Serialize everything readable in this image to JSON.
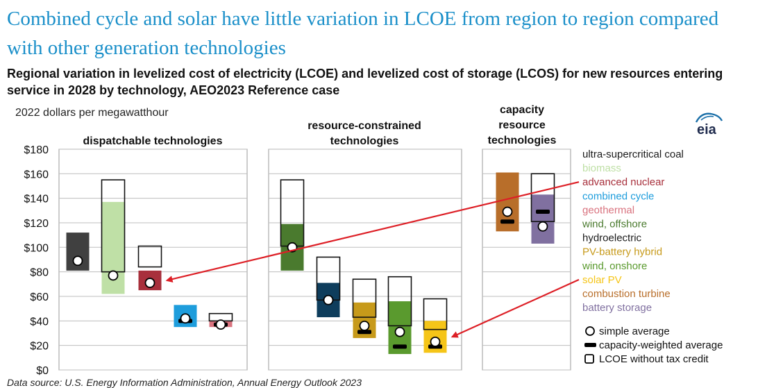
{
  "header": {
    "title": "Combined cycle and solar have little variation in LCOE from region to region compared with other generation technologies",
    "subtitle": "Regional variation in levelized cost of electricity (LCOE) and levelized cost of storage (LCOS) for new resources entering service in 2028 by technology, AEO2023 Reference case",
    "units": "2022 dollars per megawatthour",
    "logo_text": "eia"
  },
  "footer": {
    "source": "Data source: U.S. Energy Information Administration, Annual Energy Outlook 2023"
  },
  "chart_data": {
    "type": "range-bar",
    "ylim": [
      0,
      180
    ],
    "yticks": [
      0,
      20,
      40,
      60,
      80,
      100,
      120,
      140,
      160,
      180
    ],
    "ytick_labels": [
      "$0",
      "$20",
      "$40",
      "$60",
      "$80",
      "$100",
      "$120",
      "$140",
      "$160",
      "$180"
    ],
    "grid": true,
    "legend_position": "right",
    "groups": [
      {
        "label": [
          "dispatchable technologies"
        ]
      },
      {
        "label": [
          "resource-constrained",
          "technologies"
        ]
      },
      {
        "label": [
          "capacity",
          "resource",
          "technologies"
        ]
      }
    ],
    "series": [
      {
        "name": "ultra-supercritical coal",
        "color": "#404040",
        "group": 0,
        "min": 81,
        "max": 112,
        "credit_min": null,
        "credit_max": null,
        "simple_avg": 89,
        "weighted_avg": null
      },
      {
        "name": "biomass",
        "color": "#bfe0a6",
        "group": 0,
        "min": 62,
        "max": 137,
        "credit_min": 80,
        "credit_max": 155,
        "simple_avg": 77,
        "weighted_avg": null
      },
      {
        "name": "advanced nuclear",
        "color": "#a8303c",
        "group": 0,
        "min": 65,
        "max": 81,
        "credit_min": 84,
        "credit_max": 101,
        "simple_avg": 71,
        "weighted_avg": null
      },
      {
        "name": "combined cycle",
        "color": "#1e9ddc",
        "group": 0,
        "min": 35,
        "max": 53,
        "credit_min": null,
        "credit_max": null,
        "simple_avg": 42,
        "weighted_avg": 40
      },
      {
        "name": "geothermal",
        "color": "#d9737f",
        "group": 0,
        "min": 35,
        "max": 40,
        "credit_min": 40,
        "credit_max": 46,
        "simple_avg": 37,
        "weighted_avg": 37
      },
      {
        "name": "wind, offshore",
        "color": "#4a7a2e",
        "group": 1,
        "min": 81,
        "max": 119,
        "credit_min": 101,
        "credit_max": 155,
        "simple_avg": 100,
        "weighted_avg": null
      },
      {
        "name": "hydroelectric",
        "color": "#0e3d5c",
        "group": 1,
        "min": 43,
        "max": 71,
        "credit_min": 57,
        "credit_max": 92,
        "simple_avg": 57,
        "weighted_avg": null
      },
      {
        "name": "PV-battery hybrid",
        "color": "#c79a1a",
        "group": 1,
        "min": 26,
        "max": 55,
        "credit_min": 43,
        "credit_max": 74,
        "simple_avg": 36,
        "weighted_avg": 31
      },
      {
        "name": "wind, onshore",
        "color": "#5a9a2e",
        "group": 1,
        "min": 13,
        "max": 56,
        "credit_min": 36,
        "credit_max": 76,
        "simple_avg": 31,
        "weighted_avg": 19
      },
      {
        "name": "solar PV",
        "color": "#f5c518",
        "group": 1,
        "min": 14,
        "max": 40,
        "credit_min": 33,
        "credit_max": 58,
        "simple_avg": 23,
        "weighted_avg": 19
      },
      {
        "name": "combustion turbine",
        "color": "#b86e2a",
        "group": 2,
        "min": 113,
        "max": 161,
        "credit_min": null,
        "credit_max": null,
        "simple_avg": 129,
        "weighted_avg": 121
      },
      {
        "name": "battery storage",
        "color": "#8070a0",
        "group": 2,
        "min": 103,
        "max": 143,
        "credit_min": 121,
        "credit_max": 160,
        "simple_avg": 117,
        "weighted_avg": 129
      }
    ],
    "legend_markers": [
      {
        "symbol": "simple-average",
        "label": "simple average"
      },
      {
        "symbol": "capacity-weighted-average",
        "label": "capacity-weighted average"
      },
      {
        "symbol": "lcoe-without-tax-credit",
        "label": "LCOE without tax credit"
      }
    ],
    "annotations": [
      {
        "from_legend": "advanced nuclear",
        "to_series": "advanced nuclear",
        "color": "#dd1f26"
      },
      {
        "from_legend": "solar PV",
        "to_series": "solar PV",
        "color": "#dd1f26"
      }
    ]
  }
}
